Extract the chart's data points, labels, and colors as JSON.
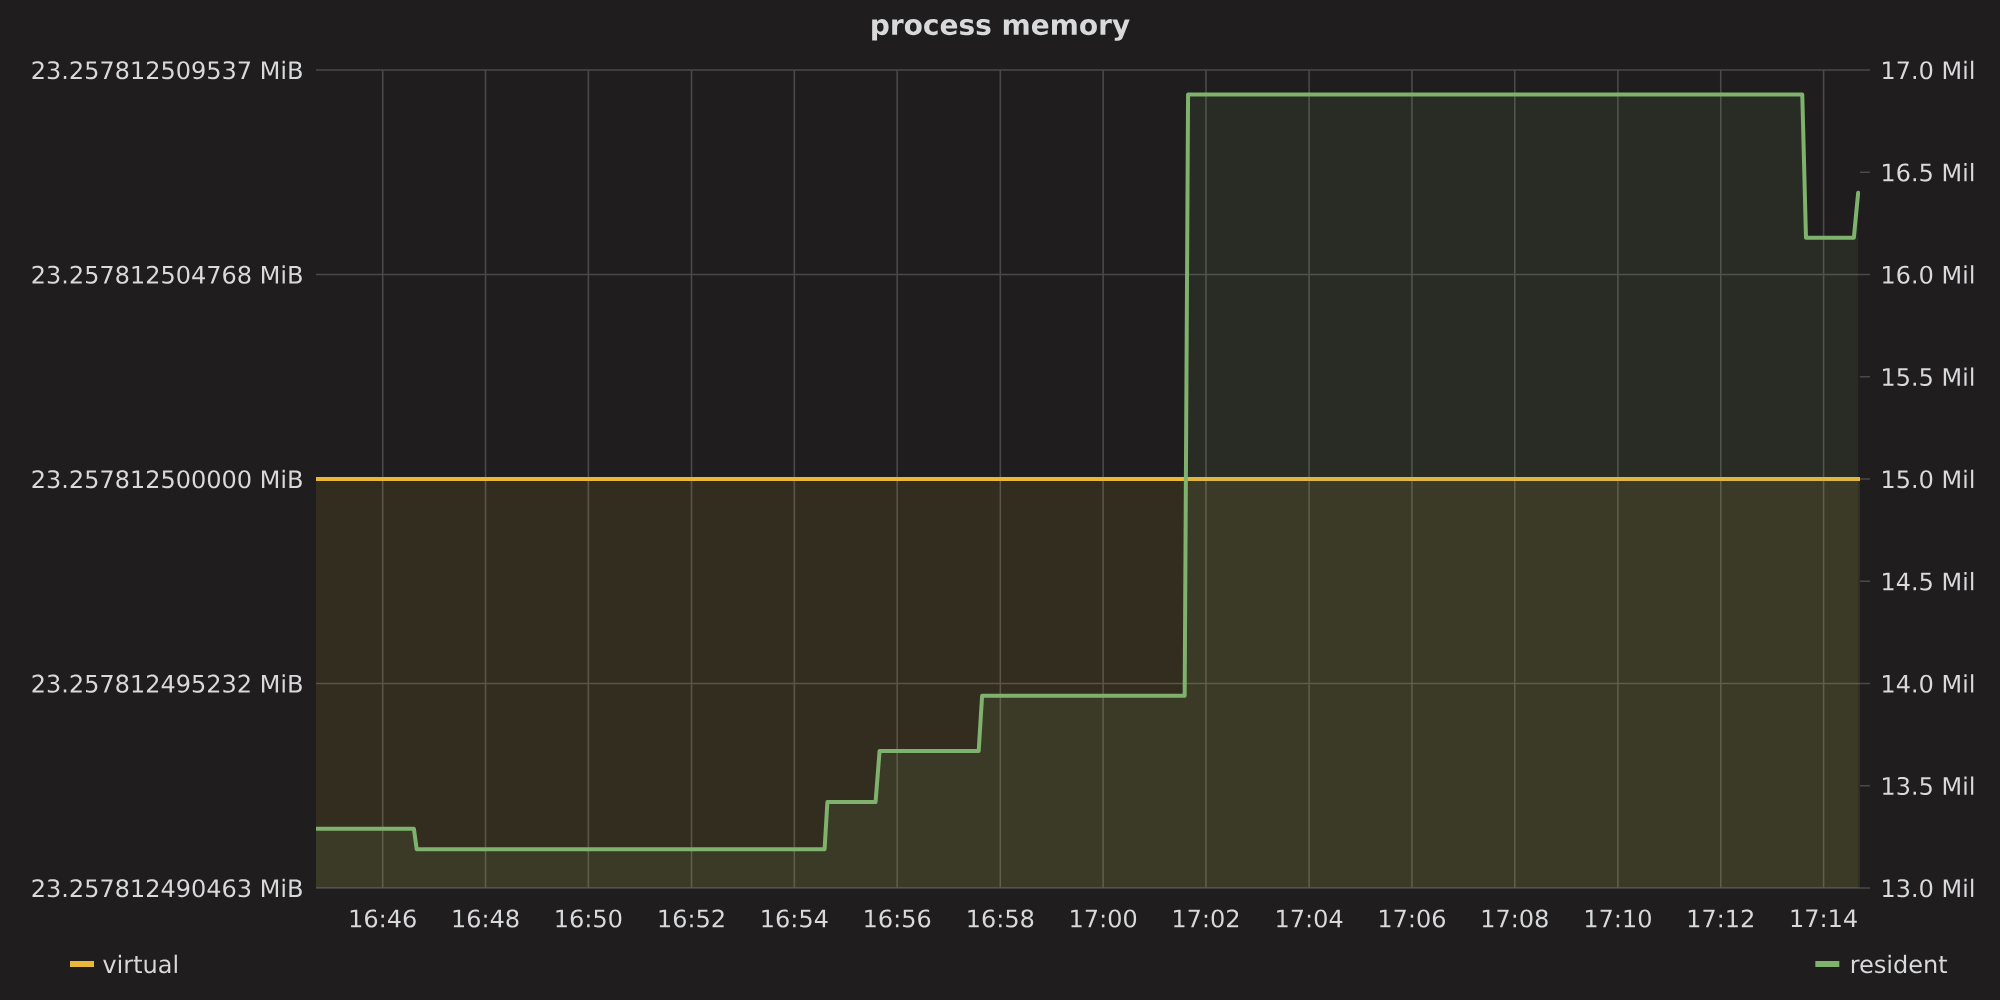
{
  "chart_data": {
    "type": "area",
    "title": "process memory",
    "xlim": [
      16.7451,
      17.2451
    ],
    "xticks": [
      {
        "value": 16.7667,
        "label": "16:46"
      },
      {
        "value": 16.8,
        "label": "16:48"
      },
      {
        "value": 16.8333,
        "label": "16:50"
      },
      {
        "value": 16.8667,
        "label": "16:52"
      },
      {
        "value": 16.9,
        "label": "16:54"
      },
      {
        "value": 16.9333,
        "label": "16:56"
      },
      {
        "value": 16.9667,
        "label": "16:58"
      },
      {
        "value": 17,
        "label": "17:00"
      },
      {
        "value": 17.0333,
        "label": "17:02"
      },
      {
        "value": 17.0667,
        "label": "17:04"
      },
      {
        "value": 17.1,
        "label": "17:06"
      },
      {
        "value": 17.1333,
        "label": "17:08"
      },
      {
        "value": 17.1667,
        "label": "17:10"
      },
      {
        "value": 17.2,
        "label": "17:12"
      },
      {
        "value": 17.2333,
        "label": "17:14"
      }
    ],
    "ylim": [
      23.257812490463,
      23.257812509537
    ],
    "yticks": [
      {
        "value": 23.257812490463,
        "label": "23.257812490463 MiB"
      },
      {
        "value": 23.257812495232,
        "label": "23.257812495232 MiB"
      },
      {
        "value": 23.2578125,
        "label": "23.257812500000 MiB"
      },
      {
        "value": 23.257812504768,
        "label": "23.257812504768 MiB"
      },
      {
        "value": 23.257812509537,
        "label": "23.257812509537 MiB"
      }
    ],
    "y2lim": [
      13,
      17
    ],
    "y2ticks": [
      {
        "value": 13,
        "label": "13.0 Mil"
      },
      {
        "value": 13.5,
        "label": "13.5 Mil"
      },
      {
        "value": 14,
        "label": "14.0 Mil"
      },
      {
        "value": 14.5,
        "label": "14.5 Mil"
      },
      {
        "value": 15,
        "label": "15.0 Mil"
      },
      {
        "value": 15.5,
        "label": "15.5 Mil"
      },
      {
        "value": 16,
        "label": "16.0 Mil"
      },
      {
        "value": 16.5,
        "label": "16.5 Mil"
      },
      {
        "value": 17,
        "label": "17.0 Mil"
      }
    ],
    "grid": true,
    "legend": "bottom",
    "series": [
      {
        "name": "virtual",
        "color": "#eab839",
        "x": [
          16.7451,
          17.2451
        ],
        "values": [
          23.2578125,
          23.2578125
        ]
      },
      {
        "name": "resident",
        "color": "#7eb26d",
        "axis": "y2",
        "x": [
          16.7451,
          16.7768,
          16.7777,
          16.9098,
          16.9107,
          16.9263,
          16.9276,
          16.9597,
          16.9608,
          17.0264,
          17.0275,
          17.2264,
          17.2276,
          17.2431,
          17.2445
        ],
        "values": [
          13.29,
          13.29,
          13.19,
          13.19,
          13.42,
          13.42,
          13.67,
          13.67,
          13.94,
          13.94,
          16.88,
          16.88,
          16.18,
          16.18,
          16.4
        ]
      }
    ]
  }
}
